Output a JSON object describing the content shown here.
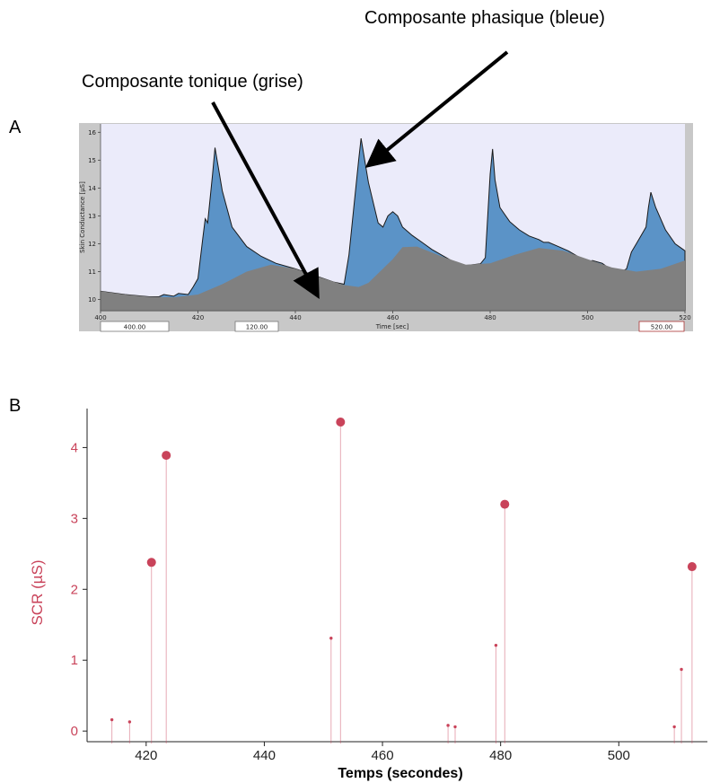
{
  "annotations": {
    "phasic": "Composante phasique (bleue)",
    "tonic": "Composante tonique (grise)"
  },
  "panels": {
    "a": "A",
    "b": "B"
  },
  "colors": {
    "phasic_fill": "#5b93c7",
    "tonic_fill": "#808080",
    "plot_bg": "#ebebfa",
    "frame_gray": "#c8c8c8",
    "scr_color": "#c9435a"
  },
  "chart_data": [
    {
      "type": "area",
      "xlabel": "Time [sec]",
      "ylabel": "Skin Conductance [µS]",
      "xlim": [
        400,
        520
      ],
      "ylim": [
        9.6,
        16.3
      ],
      "x_ticks": [
        "400",
        "420",
        "440",
        "460",
        "480",
        "500",
        "520"
      ],
      "y_ticks": [
        "10",
        "11",
        "12",
        "13",
        "14",
        "15",
        "16"
      ],
      "controls": [
        "400.00",
        "120.00",
        "520.00"
      ],
      "series": [
        {
          "component": "tonic",
          "x": [
            400,
            405,
            410,
            415,
            420,
            425,
            430,
            435,
            440,
            445,
            450,
            453,
            455,
            460,
            462,
            465,
            470,
            475,
            480,
            485,
            490,
            495,
            500,
            505,
            510,
            515,
            520
          ],
          "y": [
            10.3,
            10.18,
            10.1,
            10.08,
            10.18,
            10.55,
            11.0,
            11.25,
            11.1,
            10.8,
            10.52,
            10.45,
            10.6,
            11.45,
            11.88,
            11.9,
            11.55,
            11.25,
            11.3,
            11.6,
            11.85,
            11.75,
            11.45,
            11.15,
            11.0,
            11.1,
            11.4
          ]
        },
        {
          "component": "total",
          "x": [
            400,
            405,
            410,
            412,
            413,
            415,
            416,
            418,
            419,
            420,
            421,
            421.5,
            422,
            423,
            423.5,
            425,
            427,
            430,
            433,
            436,
            440,
            445,
            448,
            450,
            451,
            452,
            453,
            453.5,
            455,
            457,
            458,
            459,
            460,
            461,
            462,
            464,
            466,
            468,
            470,
            472,
            475,
            478,
            479,
            480,
            480.5,
            481,
            482,
            484,
            486,
            488,
            490,
            491,
            492,
            494,
            496,
            498,
            500,
            501,
            503,
            505,
            507,
            508,
            509,
            510,
            511,
            512,
            512.5,
            513,
            514,
            516,
            518,
            520
          ],
          "y": [
            10.3,
            10.18,
            10.1,
            10.1,
            10.18,
            10.12,
            10.22,
            10.18,
            10.45,
            10.75,
            12.2,
            12.9,
            12.75,
            14.5,
            15.45,
            13.9,
            12.6,
            11.9,
            11.55,
            11.3,
            11.1,
            10.8,
            10.62,
            10.55,
            11.6,
            13.3,
            15.0,
            15.78,
            14.2,
            12.75,
            12.6,
            13.0,
            13.15,
            13.0,
            12.6,
            12.3,
            12.05,
            11.8,
            11.6,
            11.4,
            11.22,
            11.28,
            11.5,
            14.5,
            15.4,
            14.3,
            13.3,
            12.8,
            12.5,
            12.28,
            12.15,
            12.05,
            12.05,
            11.9,
            11.75,
            11.55,
            11.35,
            11.4,
            11.3,
            11.05,
            11.0,
            11.1,
            11.7,
            12.0,
            12.3,
            12.6,
            13.3,
            13.85,
            13.3,
            12.5,
            12.0,
            11.75
          ]
        }
      ]
    },
    {
      "type": "scatter",
      "xlabel": "Temps (secondes)",
      "ylabel": "SCR (µS)",
      "xlim": [
        410,
        515
      ],
      "ylim": [
        -0.15,
        4.55
      ],
      "x_ticks": [
        420,
        440,
        460,
        480,
        500
      ],
      "y_ticks": [
        0,
        1,
        2,
        3,
        4
      ],
      "points": [
        {
          "x": 414.2,
          "y": 0.16
        },
        {
          "x": 417.2,
          "y": 0.13
        },
        {
          "x": 420.9,
          "y": 2.38
        },
        {
          "x": 423.4,
          "y": 3.89
        },
        {
          "x": 451.3,
          "y": 1.31
        },
        {
          "x": 452.9,
          "y": 4.36
        },
        {
          "x": 471.1,
          "y": 0.08
        },
        {
          "x": 472.3,
          "y": 0.06
        },
        {
          "x": 479.2,
          "y": 1.21
        },
        {
          "x": 480.7,
          "y": 3.2
        },
        {
          "x": 509.4,
          "y": 0.06
        },
        {
          "x": 510.6,
          "y": 0.87
        },
        {
          "x": 512.4,
          "y": 2.32
        }
      ]
    }
  ]
}
